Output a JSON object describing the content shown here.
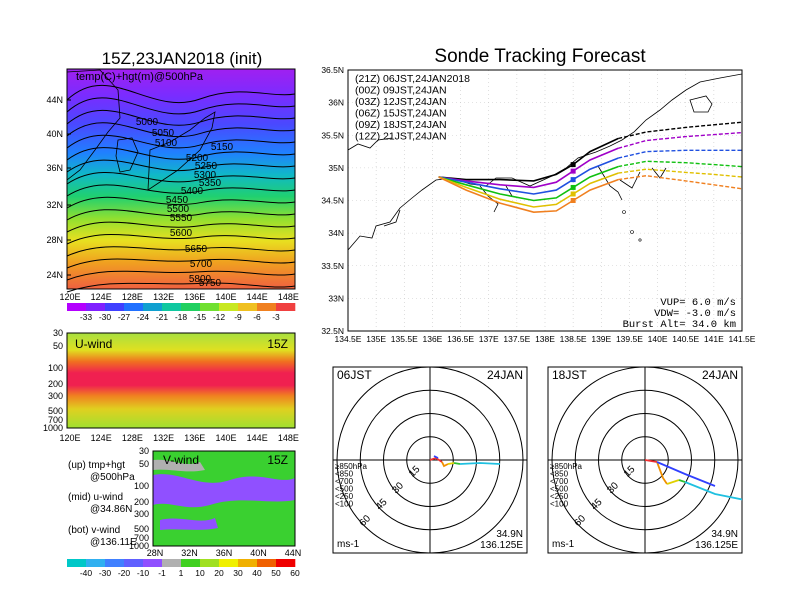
{
  "left_panel": {
    "title": "15Z,23JAN2018 (init)",
    "map_label": "temp(C)+hgt(m)@500hPa",
    "lat_ticks": [
      "44N",
      "40N",
      "36N",
      "32N",
      "28N",
      "24N"
    ],
    "lon_ticks": [
      "120E",
      "124E",
      "128E",
      "132E",
      "136E",
      "140E",
      "144E",
      "148E"
    ],
    "contour_labels": [
      "5000",
      "5050",
      "5100",
      "5150",
      "5200",
      "5250",
      "5300",
      "5350",
      "5400",
      "5450",
      "5500",
      "5550",
      "5600",
      "5650",
      "5700",
      "5750",
      "5800"
    ],
    "colorbar_labels": [
      "-33",
      "-30",
      "-27",
      "-24",
      "-21",
      "-18",
      "-15",
      "-12",
      "-9",
      "-6",
      "-3"
    ],
    "colorbar_colors": [
      "#b400ff",
      "#8020ff",
      "#4040ff",
      "#2070ff",
      "#10a0d0",
      "#10c8a0",
      "#20d060",
      "#70e030",
      "#c8e820",
      "#f0c020",
      "#f08020",
      "#f04040"
    ]
  },
  "uwind_panel": {
    "label": "U-wind",
    "time": "15Z",
    "p_ticks": [
      "30",
      "50",
      "100",
      "200",
      "300",
      "500",
      "700",
      "1000"
    ],
    "lon_ticks": [
      "120E",
      "124E",
      "128E",
      "132E",
      "136E",
      "140E",
      "144E",
      "148E"
    ]
  },
  "vwind_panel": {
    "label": "V-wind",
    "time": "15Z",
    "p_ticks": [
      "30",
      "50",
      "100",
      "200",
      "300",
      "500",
      "700",
      "1000"
    ],
    "lat_ticks": [
      "28N",
      "32N",
      "36N",
      "40N",
      "44N"
    ]
  },
  "notes": [
    "(up) tmp+hgt",
    "@500hPa",
    "(mid) u-wind",
    "@34.86N",
    "(bot) v-wind",
    "@136.11E"
  ],
  "wind_colorbar": {
    "labels": [
      "-40",
      "-30",
      "-20",
      "-10",
      "-1",
      "1",
      "10",
      "20",
      "30",
      "40",
      "50",
      "60"
    ],
    "colors": [
      "#00c8c8",
      "#30b0f0",
      "#4080ff",
      "#6060ff",
      "#9050ff",
      "#b0b0b0",
      "#40d020",
      "#a0e020",
      "#f0f000",
      "#f0b000",
      "#f06000",
      "#f00000"
    ]
  },
  "tracking": {
    "title": "Sonde Tracking Forecast",
    "legend": [
      {
        "text": "(21Z)  06JST,24JAN2018",
        "color": "#000000"
      },
      {
        "text": "(00Z)  09JST,24JAN",
        "color": "#a000c8"
      },
      {
        "text": "(03Z)  12JST,24JAN",
        "color": "#2050e0"
      },
      {
        "text": "(06Z)  15JST,24JAN",
        "color": "#10c010"
      },
      {
        "text": "(09Z)  18JST,24JAN",
        "color": "#e0c000"
      },
      {
        "text": "(12Z)  21JST,24JAN",
        "color": "#f08020"
      }
    ],
    "lat_ticks": [
      "36.5N",
      "36N",
      "35.5N",
      "35N",
      "34.5N",
      "34N",
      "33.5N",
      "33N",
      "32.5N"
    ],
    "lon_ticks": [
      "134.5E",
      "135E",
      "135.5E",
      "136E",
      "136.5E",
      "137E",
      "137.5E",
      "138E",
      "138.5E",
      "139E",
      "139.5E",
      "140E",
      "140.5E",
      "141E",
      "141.5E"
    ],
    "vup": "VUP= 6.0 m/s",
    "vdw": "VDW= -3.0 m/s",
    "burst": "Burst Alt= 34.0 km"
  },
  "chart_data": {
    "type": "line",
    "title": "Sonde Tracking Forecast",
    "xlim": [
      134.5,
      141.5
    ],
    "ylim": [
      32.5,
      36.5
    ],
    "series": [
      {
        "name": "(21Z) 06JST,24JAN2018",
        "lon": [
          136.11,
          136.6,
          137.2,
          137.8,
          138.2,
          138.5,
          138.8,
          139.3,
          139.8,
          140.5,
          141.0,
          141.5
        ],
        "lat": [
          34.86,
          34.82,
          34.82,
          34.8,
          34.9,
          35.05,
          35.25,
          35.45,
          35.55,
          35.62,
          35.66,
          35.7
        ]
      },
      {
        "name": "(00Z) 09JST,24JAN",
        "lon": [
          136.11,
          136.6,
          137.2,
          137.8,
          138.2,
          138.5,
          138.8,
          139.3,
          139.8,
          140.5,
          141.0,
          141.5
        ],
        "lat": [
          34.86,
          34.8,
          34.74,
          34.7,
          34.78,
          34.95,
          35.12,
          35.3,
          35.42,
          35.48,
          35.51,
          35.54
        ]
      },
      {
        "name": "(03Z) 12JST,24JAN",
        "lon": [
          136.11,
          136.6,
          137.2,
          137.8,
          138.2,
          138.5,
          138.8,
          139.3,
          139.8,
          140.5,
          141.0,
          141.5
        ],
        "lat": [
          34.86,
          34.78,
          34.68,
          34.6,
          34.66,
          34.82,
          34.98,
          35.15,
          35.25,
          35.27,
          35.27,
          35.27
        ]
      },
      {
        "name": "(06Z) 15JST,24JAN",
        "lon": [
          136.11,
          136.6,
          137.2,
          137.8,
          138.2,
          138.5,
          138.8,
          139.3,
          139.8,
          140.5,
          141.0,
          141.5
        ],
        "lat": [
          34.86,
          34.74,
          34.6,
          34.5,
          34.54,
          34.7,
          34.86,
          35.02,
          35.1,
          35.08,
          35.05,
          35.02
        ]
      },
      {
        "name": "(09Z) 18JST,24JAN",
        "lon": [
          136.11,
          136.6,
          137.2,
          137.8,
          138.2,
          138.5,
          138.8,
          139.3,
          139.8,
          140.5,
          141.0,
          141.5
        ],
        "lat": [
          34.86,
          34.7,
          34.52,
          34.4,
          34.44,
          34.6,
          34.76,
          34.92,
          34.98,
          34.93,
          34.9,
          34.86
        ]
      },
      {
        "name": "(12Z) 21JST,24JAN",
        "lon": [
          136.11,
          136.6,
          137.2,
          137.8,
          138.2,
          138.5,
          138.8,
          139.3,
          139.8,
          140.5,
          141.0,
          141.5
        ],
        "lat": [
          34.86,
          34.66,
          34.46,
          34.32,
          34.34,
          34.5,
          34.66,
          34.82,
          34.88,
          34.8,
          34.74,
          34.68
        ]
      }
    ]
  },
  "hodographs": [
    {
      "time": "06JST",
      "date": "24JAN",
      "lat": "34.9N",
      "lon": "136.125E",
      "unit": "ms-1",
      "ring_labels": [
        "15",
        "30",
        "45",
        "60"
      ],
      "legend": [
        {
          "text": "≥850hPa",
          "color": "#f03030"
        },
        {
          "text": "<850",
          "color": "#f09000"
        },
        {
          "text": "<700",
          "color": "#e0d000"
        },
        {
          "text": "<500",
          "color": "#30c030"
        },
        {
          "text": "<250",
          "color": "#20c0e0"
        },
        {
          "text": "<100",
          "color": "#3040ff"
        }
      ]
    },
    {
      "time": "18JST",
      "date": "24JAN",
      "lat": "34.9N",
      "lon": "136.125E",
      "unit": "ms-1",
      "ring_labels": [
        "15",
        "30",
        "45",
        "60"
      ],
      "legend": [
        {
          "text": "≥850hPa",
          "color": "#f03030"
        },
        {
          "text": "<850",
          "color": "#f09000"
        },
        {
          "text": "<700",
          "color": "#e0d000"
        },
        {
          "text": "<500",
          "color": "#30c030"
        },
        {
          "text": "<250",
          "color": "#20c0e0"
        },
        {
          "text": "<100",
          "color": "#3040ff"
        }
      ]
    }
  ]
}
